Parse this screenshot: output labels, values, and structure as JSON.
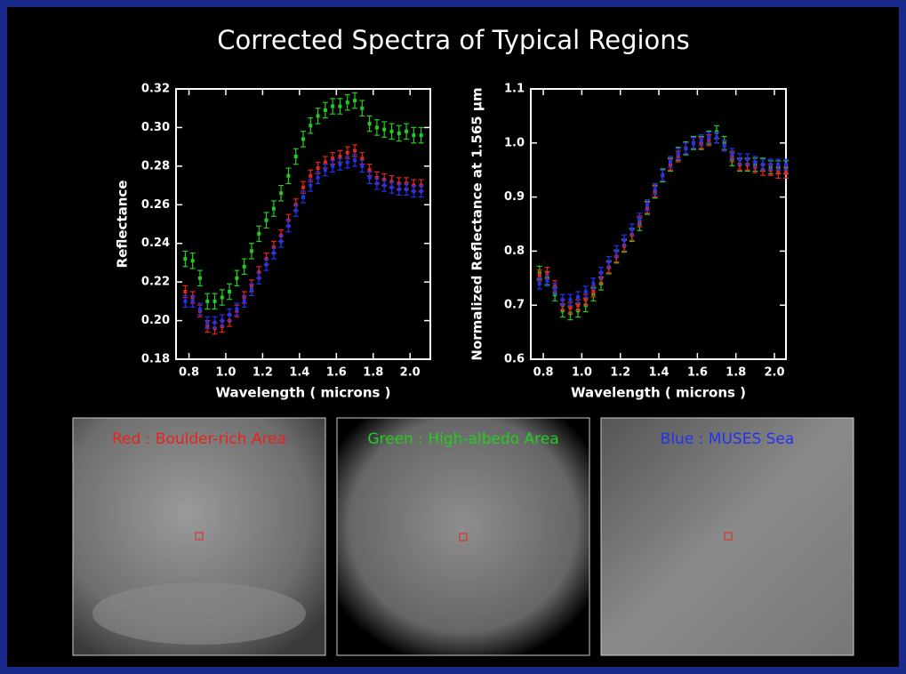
{
  "title": "Corrected Spectra of Typical Regions",
  "chart_data": [
    {
      "type": "scatter",
      "xlabel": "Wavelength ( microns )",
      "ylabel": "Reflectance",
      "x": [
        0.78,
        0.82,
        0.86,
        0.9,
        0.94,
        0.98,
        1.02,
        1.06,
        1.1,
        1.14,
        1.18,
        1.22,
        1.26,
        1.3,
        1.34,
        1.38,
        1.42,
        1.46,
        1.5,
        1.54,
        1.58,
        1.62,
        1.66,
        1.7,
        1.74,
        1.78,
        1.82,
        1.86,
        1.9,
        1.94,
        1.98,
        2.02,
        2.06
      ],
      "xlim": [
        0.73,
        2.11
      ],
      "ylim": [
        0.18,
        0.32
      ],
      "xticks": [
        0.8,
        {
          "value": 1.0,
          "label": "1.0"
        },
        1.2,
        1.4,
        1.6,
        1.8,
        {
          "value": 2.0,
          "label": "2.0"
        }
      ],
      "yticks": [
        0.18,
        {
          "value": 0.2,
          "label": "0.20"
        },
        0.22,
        0.24,
        0.26,
        0.28,
        {
          "value": 0.3,
          "label": "0.30"
        },
        0.32
      ],
      "series": [
        {
          "color": "#22cc22",
          "error": 0.004,
          "values": [
            0.232,
            0.231,
            0.222,
            0.21,
            0.21,
            0.212,
            0.215,
            0.222,
            0.228,
            0.236,
            0.245,
            0.252,
            0.258,
            0.266,
            0.275,
            0.285,
            0.294,
            0.301,
            0.306,
            0.309,
            0.311,
            0.311,
            0.313,
            0.314,
            0.31,
            0.302,
            0.3,
            0.299,
            0.298,
            0.297,
            0.298,
            0.296,
            0.296
          ]
        },
        {
          "color": "#e8231a",
          "error": 0.003,
          "values": [
            0.215,
            0.212,
            0.205,
            0.197,
            0.196,
            0.197,
            0.2,
            0.205,
            0.212,
            0.218,
            0.225,
            0.232,
            0.238,
            0.244,
            0.252,
            0.26,
            0.269,
            0.275,
            0.279,
            0.282,
            0.284,
            0.285,
            0.287,
            0.288,
            0.284,
            0.278,
            0.274,
            0.273,
            0.272,
            0.271,
            0.271,
            0.27,
            0.27
          ]
        },
        {
          "color": "#2233ee",
          "error": 0.003,
          "values": [
            0.21,
            0.21,
            0.206,
            0.199,
            0.199,
            0.2,
            0.203,
            0.206,
            0.21,
            0.216,
            0.222,
            0.229,
            0.235,
            0.241,
            0.249,
            0.257,
            0.264,
            0.27,
            0.274,
            0.278,
            0.28,
            0.281,
            0.282,
            0.283,
            0.28,
            0.274,
            0.271,
            0.27,
            0.269,
            0.268,
            0.268,
            0.267,
            0.267
          ]
        }
      ]
    },
    {
      "type": "scatter",
      "xlabel": "Wavelength ( microns )",
      "ylabel": "Normalized Reflectance at 1.565 µm",
      "x": [
        0.78,
        0.82,
        0.86,
        0.9,
        0.94,
        0.98,
        1.02,
        1.06,
        1.1,
        1.14,
        1.18,
        1.22,
        1.26,
        1.3,
        1.34,
        1.38,
        1.42,
        1.46,
        1.5,
        1.54,
        1.58,
        1.62,
        1.66,
        1.7,
        1.74,
        1.78,
        1.82,
        1.86,
        1.9,
        1.94,
        1.98,
        2.02,
        2.06
      ],
      "xlim": [
        0.735,
        2.06
      ],
      "ylim": [
        0.6,
        1.1
      ],
      "xticks": [
        0.8,
        {
          "value": 1.0,
          "label": "1.0"
        },
        1.2,
        1.4,
        1.6,
        1.8,
        {
          "value": 2.0,
          "label": "2.0"
        }
      ],
      "yticks": [
        0.6,
        0.7,
        0.8,
        0.9,
        {
          "value": 1.0,
          "label": "1.0"
        },
        1.1
      ],
      "series": [
        {
          "color": "#22cc22",
          "error": 0.012,
          "values": [
            0.76,
            0.75,
            0.72,
            0.69,
            0.685,
            0.69,
            0.7,
            0.72,
            0.74,
            0.77,
            0.79,
            0.81,
            0.83,
            0.85,
            0.88,
            0.91,
            0.94,
            0.96,
            0.98,
            0.99,
            1.0,
            1.0,
            1.01,
            1.02,
            1.0,
            0.97,
            0.96,
            0.96,
            0.96,
            0.96,
            0.955,
            0.955,
            0.955
          ]
        },
        {
          "color": "#e8231a",
          "error": 0.01,
          "values": [
            0.755,
            0.76,
            0.735,
            0.7,
            0.695,
            0.7,
            0.71,
            0.725,
            0.75,
            0.77,
            0.79,
            0.81,
            0.83,
            0.855,
            0.88,
            0.91,
            0.94,
            0.96,
            0.975,
            0.99,
            1.0,
            1.0,
            1.005,
            1.01,
            0.995,
            0.975,
            0.96,
            0.96,
            0.955,
            0.95,
            0.95,
            0.945,
            0.945
          ]
        },
        {
          "color": "#2233ee",
          "error": 0.01,
          "values": [
            0.74,
            0.745,
            0.73,
            0.71,
            0.71,
            0.715,
            0.725,
            0.74,
            0.76,
            0.78,
            0.8,
            0.82,
            0.84,
            0.86,
            0.885,
            0.915,
            0.94,
            0.965,
            0.98,
            0.99,
            1.0,
            1.005,
            1.01,
            1.01,
            0.995,
            0.98,
            0.97,
            0.97,
            0.965,
            0.96,
            0.96,
            0.96,
            0.96
          ]
        }
      ]
    }
  ],
  "panels": [
    {
      "caption": "Red : Boulder-rich Area",
      "color": "#e8231a"
    },
    {
      "caption": "Green : High-albedo Area",
      "color": "#22cc22"
    },
    {
      "caption": "Blue : MUSES Sea",
      "color": "#2233ee"
    }
  ]
}
